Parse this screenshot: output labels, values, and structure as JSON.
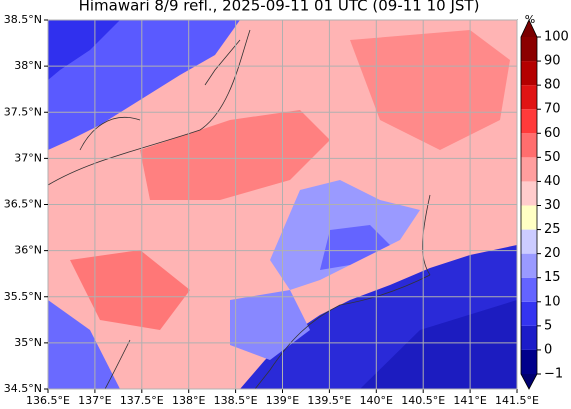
{
  "title": "Himawari 8/9 refl., 2025-09-11 01 UTC (09-11 10 JST)",
  "map": {
    "xlim": [
      136.5,
      141.5
    ],
    "ylim": [
      34.5,
      38.5
    ],
    "grid": true,
    "xticks": [
      {
        "value": 136.5,
        "label": "136.5°E"
      },
      {
        "value": 137,
        "label": "137°E"
      },
      {
        "value": 137.5,
        "label": "137.5°E"
      },
      {
        "value": 138,
        "label": "138°E"
      },
      {
        "value": 138.5,
        "label": "138.5°E"
      },
      {
        "value": 139,
        "label": "139°E"
      },
      {
        "value": 139.5,
        "label": "139.5°E"
      },
      {
        "value": 140,
        "label": "140°E"
      },
      {
        "value": 140.5,
        "label": "140.5°E"
      },
      {
        "value": 141,
        "label": "141°E"
      },
      {
        "value": 141.5,
        "label": "141.5°E"
      }
    ],
    "yticks": [
      {
        "value": 34.5,
        "label": "34.5°N"
      },
      {
        "value": 35,
        "label": "35°N"
      },
      {
        "value": 35.5,
        "label": "35.5°N"
      },
      {
        "value": 36,
        "label": "36°N"
      },
      {
        "value": 36.5,
        "label": "36.5°N"
      },
      {
        "value": 37,
        "label": "37°N"
      },
      {
        "value": 37.5,
        "label": "37.5°N"
      },
      {
        "value": 38,
        "label": "38°N"
      },
      {
        "value": 38.5,
        "label": "38.5°N"
      }
    ]
  },
  "colorbar": {
    "label": "%",
    "levels": [
      {
        "value": -1,
        "label": "−1"
      },
      0,
      5,
      10,
      15,
      20,
      25,
      30,
      40,
      50,
      60,
      70,
      80,
      90,
      100
    ],
    "colors": [
      "#00008b",
      "#1c1cc8",
      "#3434f0",
      "#6464ff",
      "#9a9aff",
      "#ccccff",
      "#ffffc4",
      "#ffcccc",
      "#ff9e9e",
      "#ff6e6e",
      "#ff3a3a",
      "#e01414",
      "#b40000",
      "#8b0000"
    ],
    "under_color": "#000070",
    "over_color": "#7a0000"
  }
}
